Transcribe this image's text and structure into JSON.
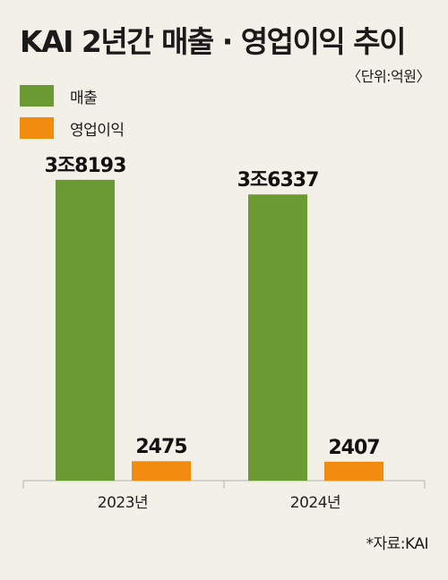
{
  "chart_data": {
    "type": "bar",
    "title": "KAI 2년간 매출 · 영업이익 추이",
    "unit_note": "〈단위:억원〉",
    "categories": [
      "2023년",
      "2024년"
    ],
    "series": [
      {
        "name": "매출",
        "values": [
          38193,
          36337
        ],
        "labels": [
          "3조8193",
          "3조6337"
        ],
        "color": "#6b9a33"
      },
      {
        "name": "영업이익",
        "values": [
          2475,
          2407
        ],
        "labels": [
          "2475",
          "2407"
        ],
        "color": "#f28c0f"
      }
    ],
    "ylim": [
      0,
      40000
    ],
    "grid": false,
    "legend_position": "top-left"
  },
  "source": "*자료:KAI"
}
